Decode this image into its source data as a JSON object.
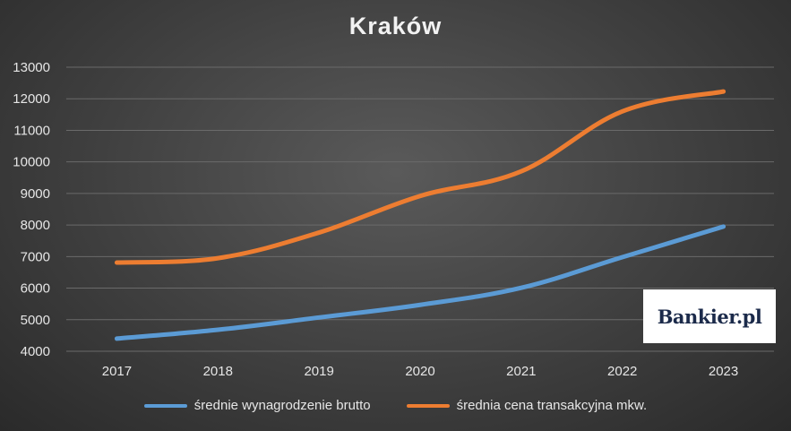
{
  "chart_data": {
    "type": "line",
    "title": "Kraków",
    "x": [
      "2017",
      "2018",
      "2019",
      "2020",
      "2021",
      "2022",
      "2023"
    ],
    "ylim": [
      4000,
      13000
    ],
    "yticks": [
      "4000",
      "5000",
      "6000",
      "7000",
      "8000",
      "9000",
      "10000",
      "11000",
      "12000",
      "13000"
    ],
    "grid": true,
    "legend_position": "bottom",
    "series": [
      {
        "name": "średnie wynagrodzenie brutto",
        "color": "#5b9bd5",
        "values": [
          4400,
          4680,
          5070,
          5470,
          6010,
          6980,
          7950
        ]
      },
      {
        "name": "średnia cena transakcyjna mkw.",
        "color": "#ed7d31",
        "values": [
          6810,
          6950,
          7760,
          8920,
          9700,
          11600,
          12230
        ]
      }
    ]
  },
  "logo": {
    "text": "Bankier.pl"
  }
}
